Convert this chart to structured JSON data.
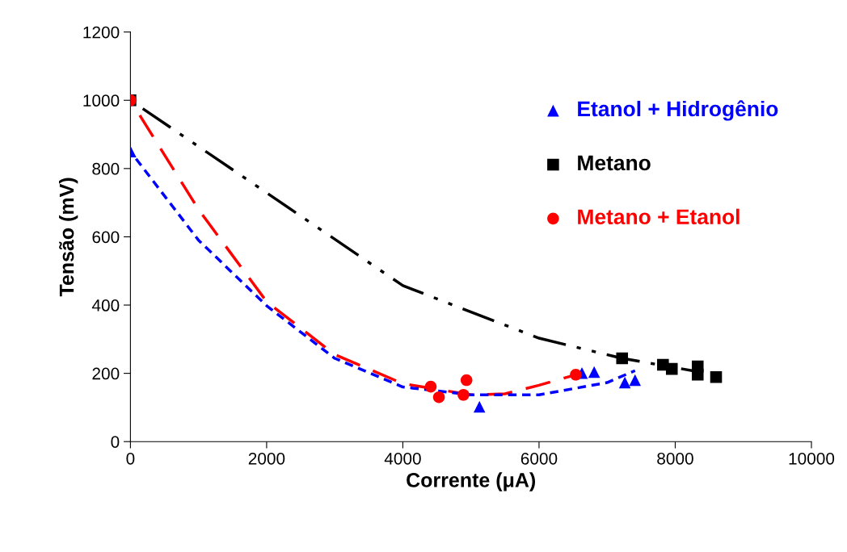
{
  "chart_data": {
    "type": "scatter",
    "xlabel": "Corrente (μA)",
    "ylabel": "Tensão (mV)",
    "xlim": [
      0,
      10000
    ],
    "ylim": [
      0,
      1200
    ],
    "xticks": [
      0,
      2000,
      4000,
      6000,
      8000,
      10000
    ],
    "yticks": [
      0,
      200,
      400,
      600,
      800,
      1000,
      1200
    ],
    "grid": false,
    "legend": "top right",
    "series": [
      {
        "name": "Etanol + Hidrogênio",
        "color": "#0000ff",
        "marker": "triangle",
        "x": [
          0,
          5125,
          6630,
          6810,
          7260,
          7410
        ],
        "values": [
          850,
          102,
          201,
          204,
          173,
          180
        ]
      },
      {
        "name": "Metano",
        "color": "#000000",
        "marker": "square",
        "x": [
          0,
          7220,
          7820,
          7950,
          8330,
          8330,
          8600
        ],
        "values": [
          1000,
          244,
          225,
          213,
          220,
          196,
          189
        ]
      },
      {
        "name": "Metano + Etanol",
        "color": "#ff0000",
        "marker": "circle",
        "x": [
          0,
          4410,
          4530,
          4890,
          4935,
          6540
        ],
        "values": [
          1000,
          161,
          130,
          137,
          180,
          196
        ]
      },
      {
        "type": "line",
        "color": "#000000",
        "line_style": "dashdot",
        "x": [
          0,
          2000,
          4000,
          6000,
          7220,
          8330
        ],
        "values": [
          1000,
          729,
          457,
          303,
          244,
          205
        ]
      },
      {
        "type": "line",
        "color": "#ff0000",
        "line_style": "dashed",
        "x": [
          0,
          1000,
          2000,
          3000,
          4000,
          5000,
          5500,
          6000,
          6540
        ],
        "values": [
          1000,
          680,
          410,
          255,
          170,
          137,
          140,
          165,
          196
        ]
      },
      {
        "type": "line",
        "color": "#0000ff",
        "line_style": "dotted",
        "x": [
          0,
          1000,
          2000,
          3000,
          4000,
          5000,
          6000,
          7000,
          7410
        ],
        "values": [
          850,
          590,
          398,
          244,
          160,
          137,
          137,
          173,
          208
        ]
      }
    ]
  }
}
